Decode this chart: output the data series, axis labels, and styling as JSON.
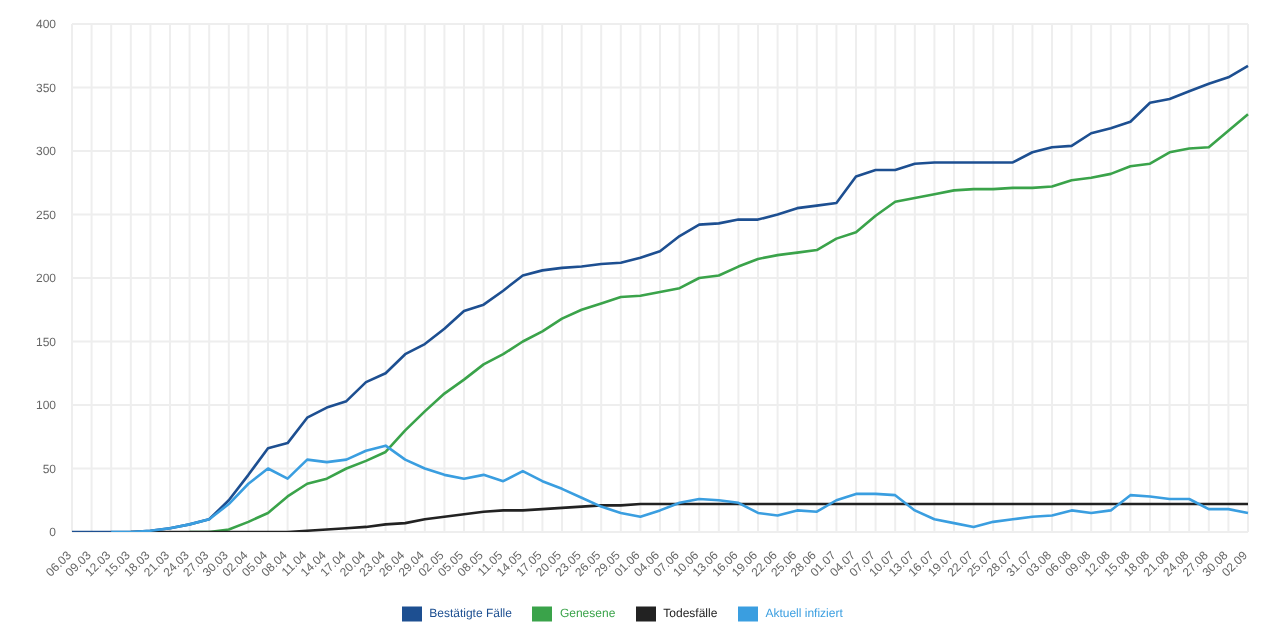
{
  "chart_data": {
    "type": "line",
    "categories": [
      "06.03",
      "09.03",
      "12.03",
      "15.03",
      "18.03",
      "21.03",
      "24.03",
      "27.03",
      "30.03",
      "02.04",
      "05.04",
      "08.04",
      "11.04",
      "14.04",
      "17.04",
      "20.04",
      "23.04",
      "26.04",
      "29.04",
      "02.05",
      "05.05",
      "08.05",
      "11.05",
      "14.05",
      "17.05",
      "20.05",
      "23.05",
      "26.05",
      "29.05",
      "01.06",
      "04.06",
      "07.06",
      "10.06",
      "13.06",
      "16.06",
      "19.06",
      "22.06",
      "25.06",
      "28.06",
      "01.07",
      "04.07",
      "07.07",
      "10.07",
      "13.07",
      "16.07",
      "19.07",
      "22.07",
      "25.07",
      "28.07",
      "31.07",
      "03.08",
      "06.08",
      "09.08",
      "12.08",
      "15.08",
      "18.08",
      "21.08",
      "24.08",
      "27.08",
      "30.08",
      "02.09"
    ],
    "series": [
      {
        "name": "Bestätigte Fälle",
        "color": "#1d4f91",
        "values": [
          0,
          0,
          0,
          0,
          1,
          3,
          6,
          10,
          25,
          45,
          66,
          70,
          90,
          98,
          103,
          118,
          125,
          140,
          148,
          160,
          174,
          179,
          190,
          202,
          206,
          208,
          209,
          211,
          212,
          216,
          221,
          233,
          242,
          243,
          246,
          246,
          250,
          255,
          257,
          259,
          280,
          285,
          285,
          290,
          291,
          291,
          291,
          291,
          291,
          299,
          303,
          304,
          314,
          318,
          323,
          338,
          341,
          347,
          353,
          358,
          367
        ]
      },
      {
        "name": "Genesene",
        "color": "#3aa34a",
        "values": [
          null,
          null,
          null,
          null,
          null,
          null,
          0,
          0,
          2,
          8,
          15,
          28,
          38,
          42,
          50,
          56,
          63,
          80,
          95,
          109,
          120,
          132,
          140,
          150,
          158,
          168,
          175,
          180,
          185,
          186,
          189,
          192,
          200,
          202,
          209,
          215,
          218,
          220,
          222,
          231,
          236,
          249,
          260,
          263,
          266,
          269,
          270,
          270,
          271,
          271,
          272,
          277,
          279,
          282,
          288,
          290,
          299,
          302,
          303,
          316,
          329
        ]
      },
      {
        "name": "Todesfälle",
        "color": "#222222",
        "values": [
          null,
          null,
          null,
          0,
          0,
          0,
          0,
          0,
          0,
          0,
          0,
          0,
          1,
          2,
          3,
          4,
          6,
          7,
          10,
          12,
          14,
          16,
          17,
          17,
          18,
          19,
          20,
          21,
          21,
          22,
          22,
          22,
          22,
          22,
          22,
          22,
          22,
          22,
          22,
          22,
          22,
          22,
          22,
          22,
          22,
          22,
          22,
          22,
          22,
          22,
          22,
          22,
          22,
          22,
          22,
          22,
          22,
          22,
          22,
          22,
          22
        ]
      },
      {
        "name": "Aktuell infiziert",
        "color": "#3a9ee0",
        "values": [
          null,
          null,
          0,
          0,
          1,
          3,
          6,
          10,
          22,
          38,
          50,
          42,
          57,
          55,
          57,
          64,
          68,
          57,
          50,
          45,
          42,
          45,
          40,
          48,
          40,
          34,
          27,
          20,
          15,
          12,
          17,
          23,
          26,
          25,
          23,
          15,
          13,
          17,
          16,
          25,
          30,
          30,
          29,
          17,
          10,
          7,
          4,
          8,
          10,
          12,
          13,
          17,
          15,
          17,
          29,
          28,
          26,
          26,
          18,
          18,
          15
        ]
      }
    ],
    "ylim": [
      0,
      400
    ],
    "yticks": [
      0,
      50,
      100,
      150,
      200,
      250,
      300,
      350,
      400
    ],
    "grid": true,
    "legend": "bottom",
    "marker": "none",
    "line_style": "solid"
  }
}
